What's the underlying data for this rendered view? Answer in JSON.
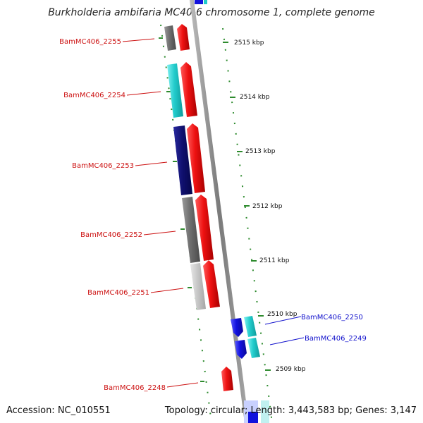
{
  "title": "Burkholderia ambifaria MC40-6 chromosome 1, complete genome",
  "footer": {
    "accession": "Accession: NC_010551",
    "summary": "Topology: circular; Length: 3,443,583 bp; Genes: 3,147"
  },
  "colors": {
    "background": "#ffffff",
    "axis": "#8a8a8a",
    "tick": "#2e8b2e",
    "forward_gene": "#ee1111",
    "reverse_gene_red_label": "#cc1111",
    "reverse_gene_blue_label": "#1111cc"
  },
  "scale": {
    "unit": "kbp",
    "ticks": [
      {
        "label": "2515 kbp",
        "kbp": 2515
      },
      {
        "label": "2514 kbp",
        "kbp": 2514
      },
      {
        "label": "2513 kbp",
        "kbp": 2513
      },
      {
        "label": "2512 kbp",
        "kbp": 2512
      },
      {
        "label": "2511 kbp",
        "kbp": 2511
      },
      {
        "label": "2510 kbp",
        "kbp": 2510
      },
      {
        "label": "2509 kbp",
        "kbp": 2509
      }
    ]
  },
  "genes": [
    {
      "label": "BamMC406_2255",
      "side": "left",
      "label_color": "#cc1111",
      "cds_color": "#6e6e6e"
    },
    {
      "label": "BamMC406_2254",
      "side": "left",
      "label_color": "#cc1111",
      "cds_color": "#22cccc"
    },
    {
      "label": "BamMC406_2253",
      "side": "left",
      "label_color": "#cc1111",
      "cds_color": "#101070"
    },
    {
      "label": "BamMC406_2252",
      "side": "left",
      "label_color": "#cc1111",
      "cds_color": "#6e6e6e"
    },
    {
      "label": "BamMC406_2251",
      "side": "left",
      "label_color": "#cc1111",
      "cds_color": "#c8c8c8"
    },
    {
      "label": "BamMC406_2250",
      "side": "right",
      "label_color": "#1111cc",
      "cds_color": "#1111dd"
    },
    {
      "label": "BamMC406_2249",
      "side": "right",
      "label_color": "#1111cc",
      "cds_color": "#1111dd"
    },
    {
      "label": "BamMC406_2248",
      "side": "left",
      "label_color": "#cc1111",
      "cds_color": null
    }
  ]
}
